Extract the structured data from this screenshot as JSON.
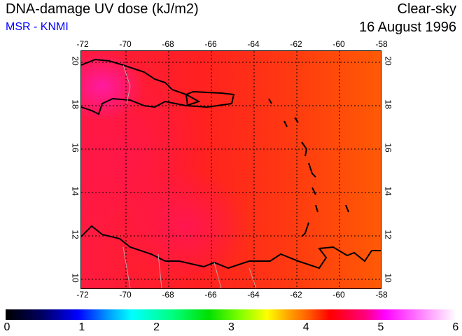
{
  "header": {
    "title": "DNA-damage UV dose (kJ/m2)",
    "source": "MSR - KNMI",
    "condition": "Clear-sky",
    "date": "16 August 1996"
  },
  "map": {
    "lon_labels": [
      "-72",
      "-70",
      "-68",
      "-66",
      "-64",
      "-62",
      "-60",
      "-58"
    ],
    "lat_labels": [
      "20",
      "18",
      "16",
      "14",
      "12",
      "10"
    ],
    "lon_range": [
      -72,
      -58
    ],
    "lat_range": [
      9.5,
      20.5
    ]
  },
  "colorbar": {
    "labels": [
      "0",
      "1",
      "2",
      "3",
      "4",
      "5",
      "6"
    ],
    "range": [
      0,
      6
    ],
    "units": "kJ/m2"
  }
}
